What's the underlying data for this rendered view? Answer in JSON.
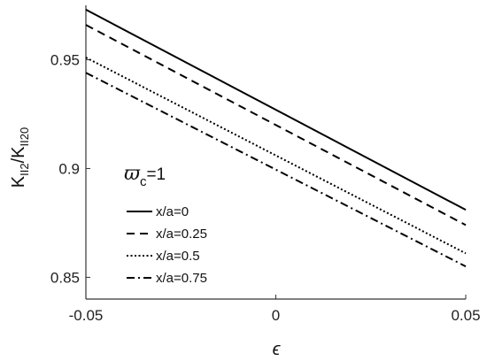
{
  "chart_data": {
    "type": "line",
    "xlabel": "ϵ",
    "ylabel_main": "K",
    "ylabel_sub1": "II2",
    "ylabel_mid": "/K",
    "ylabel_sub2": "II20",
    "xlim": [
      -0.05,
      0.05
    ],
    "ylim": [
      0.84,
      0.975
    ],
    "x_ticks": [
      -0.05,
      0,
      0.05
    ],
    "x_tick_labels": [
      "-0.05",
      "0",
      "0.05"
    ],
    "y_ticks": [
      0.85,
      0.9,
      0.95
    ],
    "y_tick_labels": [
      "0.85",
      "0.9",
      "0.95"
    ],
    "grid": false,
    "legend_position": "middle-left",
    "legend_title": {
      "symbol": "ϖ",
      "sub": "c",
      "value": "=1"
    },
    "series": [
      {
        "name": "x/a=0",
        "style": "solid",
        "x": [
          -0.05,
          0.05
        ],
        "y": [
          0.973,
          0.881
        ]
      },
      {
        "name": "x/a=0.25",
        "style": "dashed",
        "x": [
          -0.05,
          0.05
        ],
        "y": [
          0.966,
          0.874
        ]
      },
      {
        "name": "x/a=0.5",
        "style": "dotted",
        "x": [
          -0.05,
          0.05
        ],
        "y": [
          0.951,
          0.861
        ]
      },
      {
        "name": "x/a=0.75",
        "style": "dashdot",
        "x": [
          -0.05,
          0.05
        ],
        "y": [
          0.944,
          0.855
        ]
      }
    ],
    "line_color": "#000000"
  }
}
